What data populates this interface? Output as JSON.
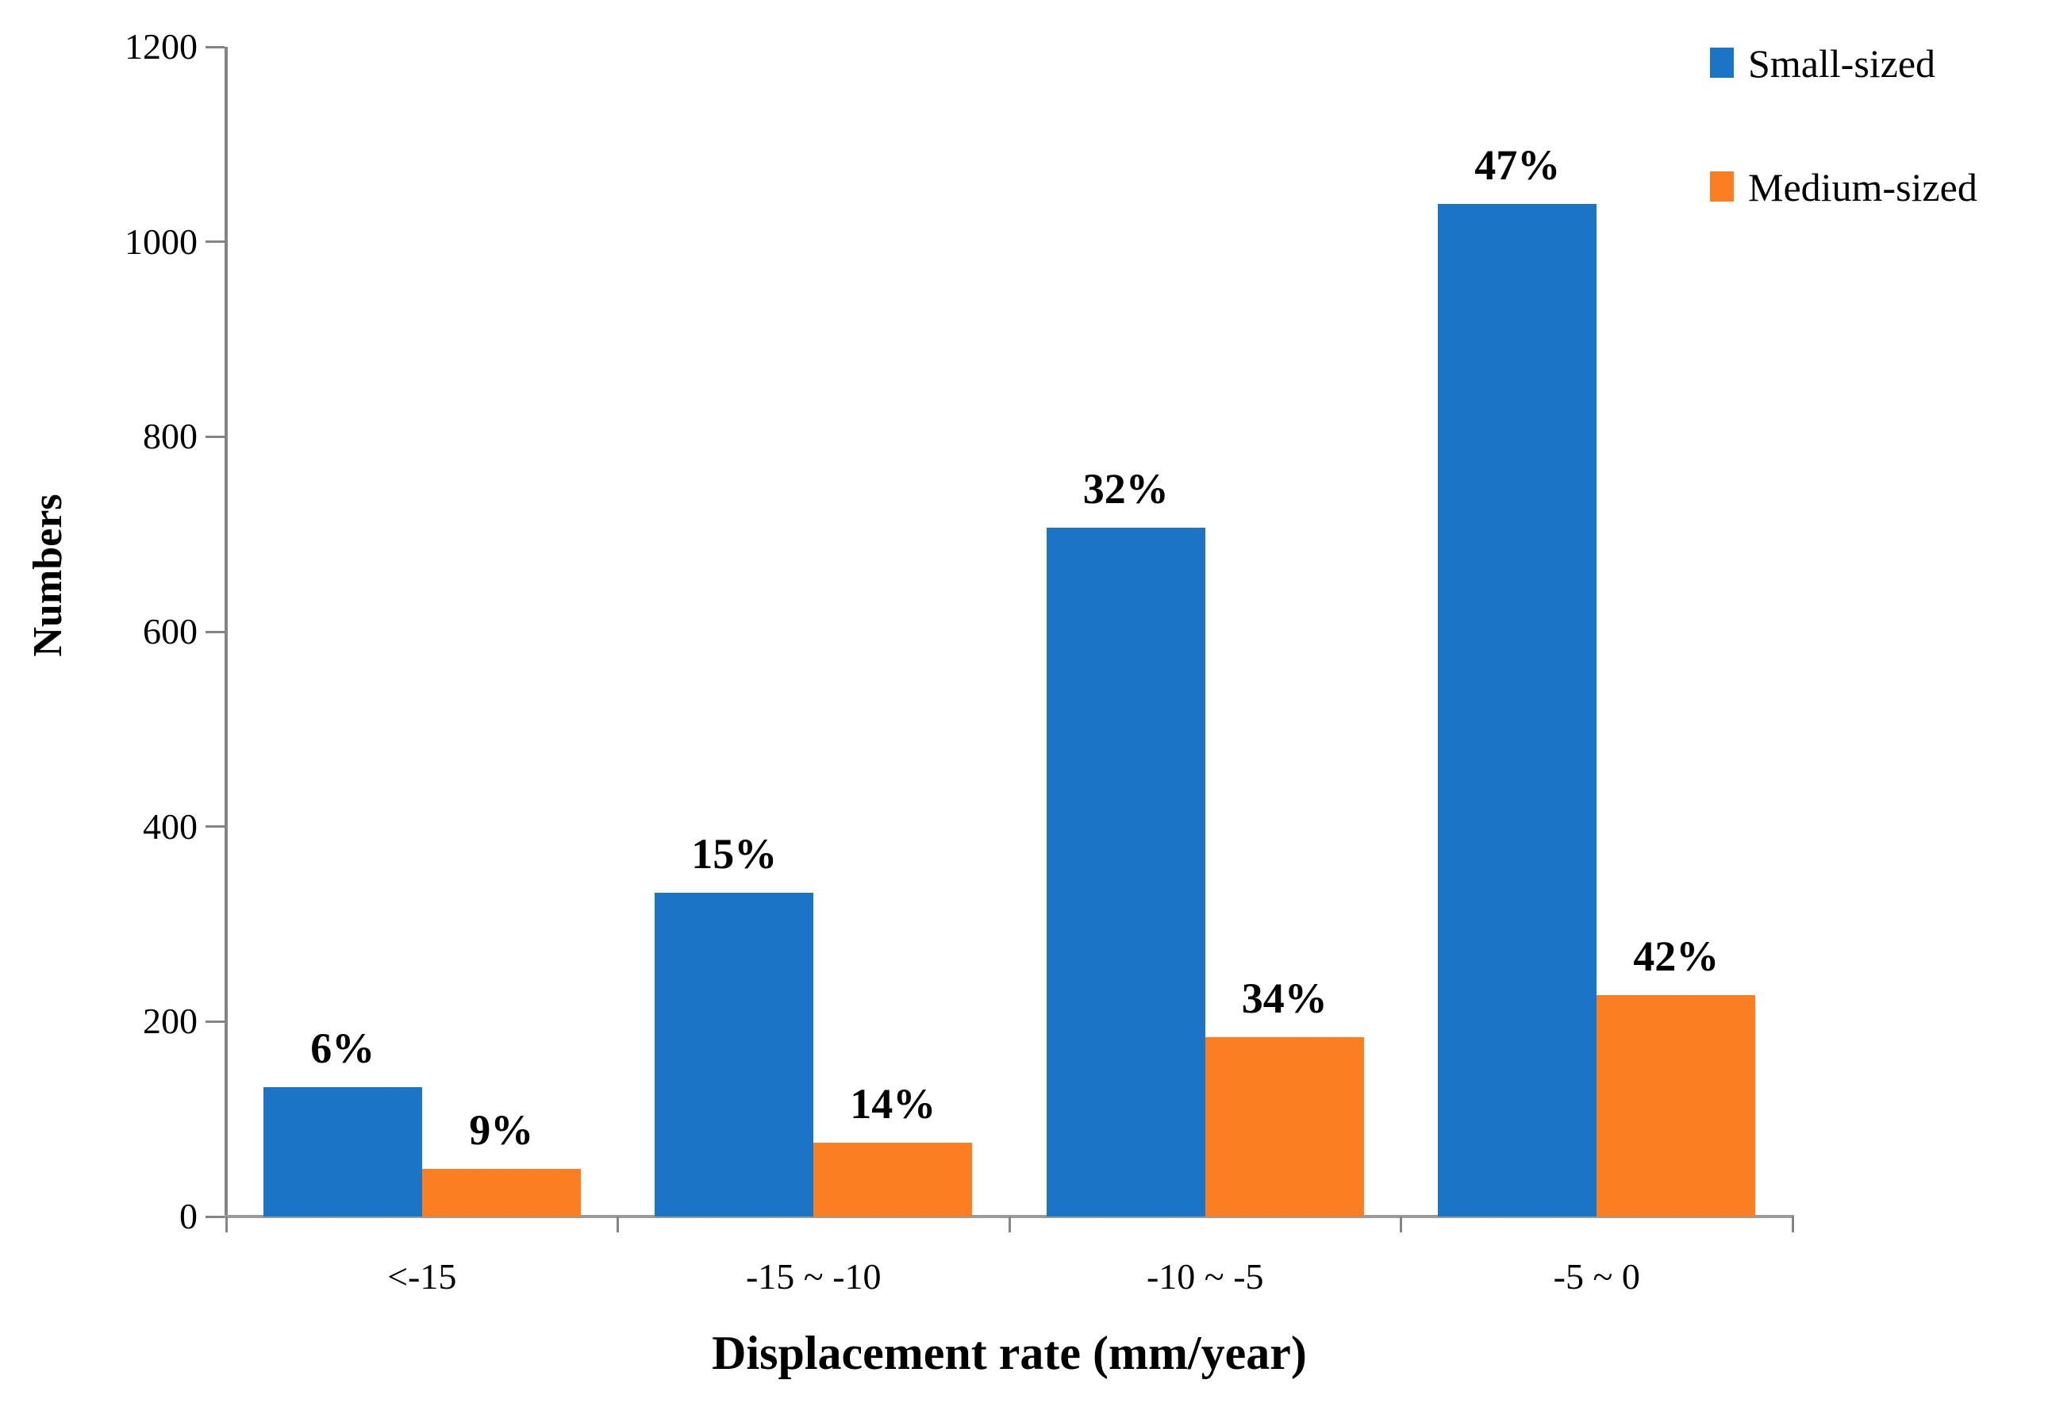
{
  "chart_data": {
    "type": "bar",
    "title": "",
    "xlabel": "Displacement rate (mm/year)",
    "ylabel": "Numbers",
    "categories": [
      "<-15",
      "-15 ~ -10",
      "-10 ~ -5",
      "-5 ~ 0"
    ],
    "series": [
      {
        "name": "Small-sized",
        "color": "#1B74C6",
        "values": [
          133,
          332,
          707,
          1039
        ],
        "percent_labels": [
          "6%",
          "15%",
          "32%",
          "47%"
        ]
      },
      {
        "name": "Medium-sized",
        "color": "#FC7E23",
        "values": [
          49,
          76,
          184,
          227
        ],
        "percent_labels": [
          "9%",
          "14%",
          "34%",
          "42%"
        ]
      }
    ],
    "ylim": [
      0,
      1200
    ],
    "yticks": [
      0,
      200,
      400,
      600,
      800,
      1000,
      1200
    ],
    "grid": false,
    "legend_position": "top-right",
    "axis_color": "#848484",
    "text_color": "#000000"
  }
}
